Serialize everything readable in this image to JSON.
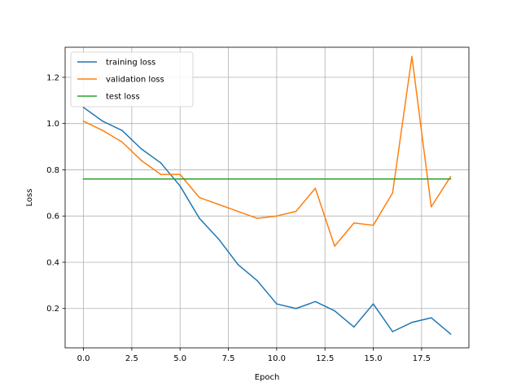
{
  "chart_data": {
    "type": "line",
    "title": "",
    "xlabel": "Epoch",
    "ylabel": "Loss",
    "xlim": [
      -0.95,
      19.95
    ],
    "ylim": [
      0.03,
      1.33
    ],
    "xticks": [
      0.0,
      2.5,
      5.0,
      7.5,
      10.0,
      12.5,
      15.0,
      17.5
    ],
    "xtick_labels": [
      "0.0",
      "2.5",
      "5.0",
      "7.5",
      "10.0",
      "12.5",
      "15.0",
      "17.5"
    ],
    "yticks": [
      0.2,
      0.4,
      0.6,
      0.8,
      1.0,
      1.2
    ],
    "ytick_labels": [
      "0.2",
      "0.4",
      "0.6",
      "0.8",
      "1.0",
      "1.2"
    ],
    "grid": true,
    "legend_position": "upper-left",
    "x": [
      0,
      1,
      2,
      3,
      4,
      5,
      6,
      7,
      8,
      9,
      10,
      11,
      12,
      13,
      14,
      15,
      16,
      17,
      18,
      19
    ],
    "series": [
      {
        "name": "training loss",
        "color": "#1f77b4",
        "values": [
          1.07,
          1.01,
          0.97,
          0.89,
          0.83,
          0.73,
          0.59,
          0.5,
          0.39,
          0.32,
          0.22,
          0.2,
          0.23,
          0.19,
          0.12,
          0.22,
          0.1,
          0.14,
          0.16,
          0.09
        ]
      },
      {
        "name": "validation loss",
        "color": "#ff7f0e",
        "values": [
          1.01,
          0.97,
          0.92,
          0.84,
          0.78,
          0.78,
          0.68,
          0.65,
          0.62,
          0.59,
          0.6,
          0.62,
          0.72,
          0.47,
          0.57,
          0.56,
          0.7,
          1.29,
          0.64,
          0.77
        ]
      },
      {
        "name": "test loss",
        "color": "#2ca02c",
        "values": [
          0.76,
          0.76,
          0.76,
          0.76,
          0.76,
          0.76,
          0.76,
          0.76,
          0.76,
          0.76,
          0.76,
          0.76,
          0.76,
          0.76,
          0.76,
          0.76,
          0.76,
          0.76,
          0.76,
          0.76
        ]
      }
    ]
  }
}
